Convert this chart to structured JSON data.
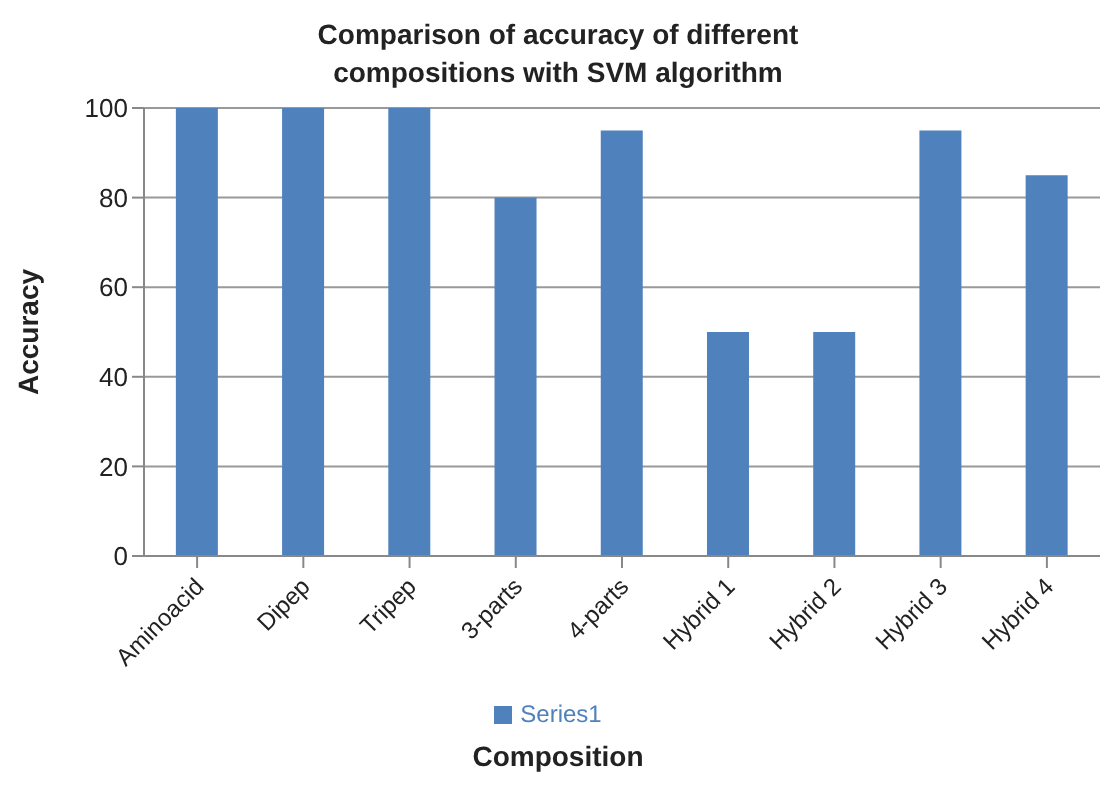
{
  "chart_data": {
    "type": "bar",
    "title": "Comparison of accuracy of different compositions with SVM algorithm",
    "xlabel": "Composition",
    "ylabel": "Accuracy",
    "categories": [
      "Aminoacid",
      "Dipep",
      "Tripep",
      "3-parts",
      "4-parts",
      "Hybrid 1",
      "Hybrid 2",
      "Hybrid 3",
      "Hybrid 4"
    ],
    "series": [
      {
        "name": "Series1",
        "color": "#4f81bd",
        "values": [
          100,
          100,
          100,
          80,
          95,
          50,
          50,
          95,
          85
        ]
      }
    ],
    "ylim": [
      0,
      100
    ],
    "yticks": [
      0,
      20,
      40,
      60,
      80,
      100
    ],
    "grid": "y",
    "legend": "bottom"
  }
}
